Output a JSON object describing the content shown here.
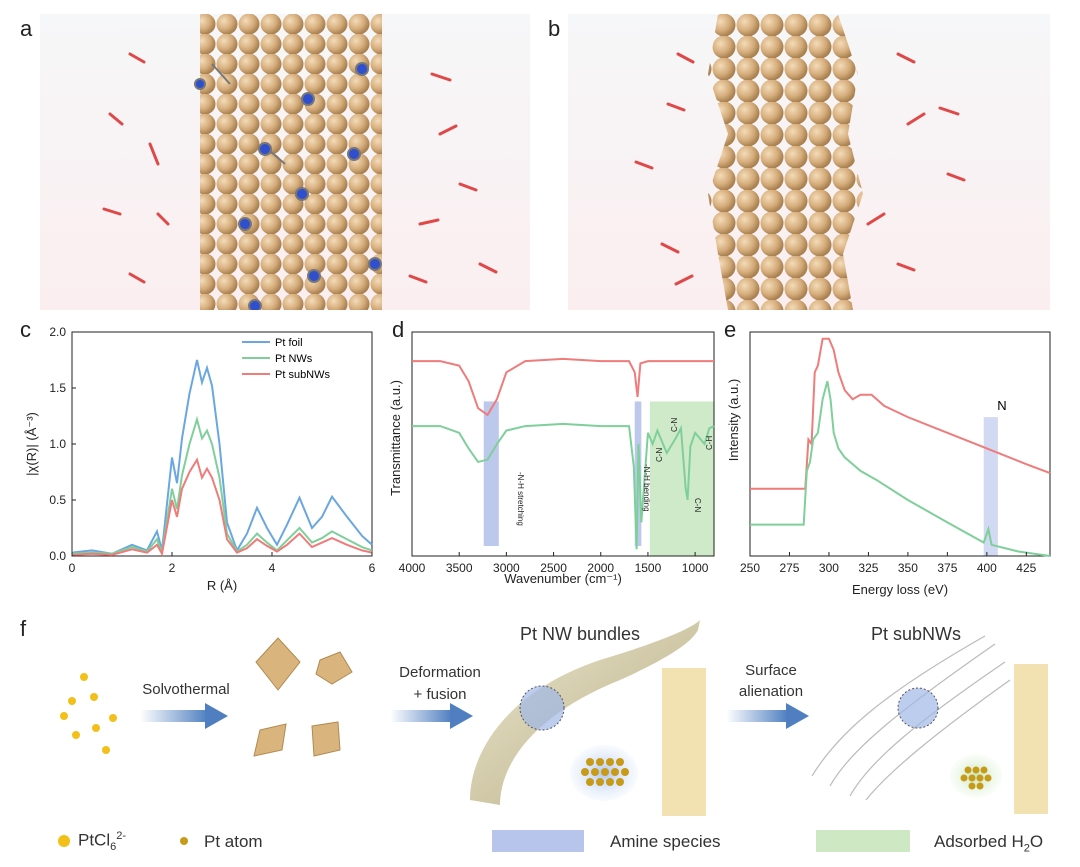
{
  "panels": {
    "a": "a",
    "b": "b",
    "c": "c",
    "d": "d",
    "e": "e",
    "f": "f"
  },
  "colors": {
    "pt_foil": "#6aa7e0",
    "pt_nws": "#7fcf9a",
    "pt_subnws": "#ef7b7b",
    "pt_sphere": "#d9b486",
    "nitrogen": "#2f4fcf",
    "oxygen": "#e04848",
    "amine_band": "#8fa3e0",
    "water_band": "#bfe3b5"
  },
  "chart_data": [
    {
      "id": "c",
      "type": "line",
      "xlabel": "R (Å)",
      "ylabel": "|χ(R)| (Å⁻³)",
      "xlim": [
        0,
        6
      ],
      "ylim": [
        0,
        2.0
      ],
      "xticks": [
        "0",
        "2",
        "4",
        "6"
      ],
      "yticks": [
        "0.0",
        "0.5",
        "1.0",
        "1.5",
        "2.0"
      ],
      "legend": [
        "Pt foil",
        "Pt NWs",
        "Pt subNWs"
      ],
      "series": [
        {
          "name": "Pt foil",
          "x": [
            0,
            0.4,
            0.8,
            1.2,
            1.5,
            1.7,
            1.8,
            2.0,
            2.1,
            2.2,
            2.35,
            2.5,
            2.6,
            2.7,
            2.8,
            2.95,
            3.1,
            3.3,
            3.5,
            3.7,
            3.9,
            4.1,
            4.3,
            4.55,
            4.8,
            5.0,
            5.2,
            5.5,
            5.8,
            6.0
          ],
          "y": [
            0.03,
            0.05,
            0.02,
            0.1,
            0.05,
            0.22,
            0.05,
            0.88,
            0.65,
            1.05,
            1.45,
            1.75,
            1.55,
            1.68,
            1.52,
            1.0,
            0.3,
            0.05,
            0.2,
            0.43,
            0.25,
            0.1,
            0.28,
            0.52,
            0.25,
            0.35,
            0.53,
            0.35,
            0.18,
            0.1
          ]
        },
        {
          "name": "Pt NWs",
          "x": [
            0,
            0.4,
            0.8,
            1.2,
            1.5,
            1.7,
            1.8,
            2.0,
            2.1,
            2.2,
            2.35,
            2.5,
            2.6,
            2.7,
            2.8,
            2.95,
            3.1,
            3.3,
            3.5,
            3.7,
            3.9,
            4.1,
            4.3,
            4.55,
            4.8,
            5.0,
            5.2,
            5.5,
            5.8,
            6.0
          ],
          "y": [
            0.02,
            0.03,
            0.02,
            0.08,
            0.04,
            0.15,
            0.03,
            0.6,
            0.42,
            0.72,
            1.0,
            1.22,
            1.05,
            1.12,
            1.0,
            0.7,
            0.2,
            0.04,
            0.1,
            0.2,
            0.12,
            0.05,
            0.14,
            0.25,
            0.12,
            0.16,
            0.22,
            0.15,
            0.08,
            0.05
          ]
        },
        {
          "name": "Pt subNWs",
          "x": [
            0,
            0.4,
            0.8,
            1.2,
            1.5,
            1.7,
            1.8,
            2.0,
            2.1,
            2.2,
            2.35,
            2.5,
            2.6,
            2.7,
            2.8,
            2.95,
            3.1,
            3.3,
            3.5,
            3.7,
            3.9,
            4.1,
            4.3,
            4.55,
            4.8,
            5.0,
            5.2,
            5.5,
            5.8,
            6.0
          ],
          "y": [
            0.01,
            0.02,
            0.01,
            0.06,
            0.03,
            0.1,
            0.02,
            0.5,
            0.35,
            0.6,
            0.75,
            0.86,
            0.7,
            0.78,
            0.7,
            0.5,
            0.15,
            0.03,
            0.07,
            0.15,
            0.09,
            0.04,
            0.1,
            0.2,
            0.08,
            0.12,
            0.16,
            0.1,
            0.05,
            0.03
          ]
        }
      ]
    },
    {
      "id": "d",
      "type": "line",
      "xlabel": "Wavenumber (cm⁻¹)",
      "ylabel": "Transmittance (a.u.)",
      "xlim": [
        4000,
        800
      ],
      "ylim": [
        0,
        1
      ],
      "xticks": [
        "4000",
        "3500",
        "3000",
        "2500",
        "2000",
        "1500",
        "1000"
      ],
      "bands": [
        {
          "label": "-N-H stretching",
          "from": 3240,
          "to": 3080,
          "kind": "amine"
        },
        {
          "label": "-N-H bending",
          "from": 1640,
          "to": 1570,
          "kind": "amine"
        },
        {
          "label": "",
          "from": 1480,
          "to": 800,
          "kind": "water"
        }
      ],
      "annotations": [
        "C-N",
        "C-N",
        "C-N",
        "C-H"
      ],
      "series": [
        {
          "name": "Pt subNWs",
          "x": [
            4000,
            3700,
            3500,
            3400,
            3300,
            3200,
            3100,
            3000,
            2800,
            2400,
            2000,
            1700,
            1640,
            1610,
            1580,
            1500,
            1200,
            800
          ],
          "y": [
            0.87,
            0.87,
            0.85,
            0.78,
            0.66,
            0.63,
            0.7,
            0.82,
            0.87,
            0.88,
            0.87,
            0.87,
            0.82,
            0.71,
            0.86,
            0.87,
            0.87,
            0.87
          ]
        },
        {
          "name": "Pt NWs",
          "x": [
            4000,
            3700,
            3500,
            3400,
            3300,
            3200,
            3100,
            3000,
            2800,
            2400,
            2000,
            1700,
            1650,
            1620,
            1600,
            1570,
            1500,
            1450,
            1400,
            1300,
            1200,
            1150,
            1100,
            1080,
            1050,
            1000,
            900,
            850,
            800
          ],
          "y": [
            0.58,
            0.58,
            0.55,
            0.48,
            0.42,
            0.43,
            0.5,
            0.56,
            0.58,
            0.59,
            0.58,
            0.58,
            0.4,
            0.03,
            0.5,
            0.15,
            0.55,
            0.5,
            0.56,
            0.46,
            0.53,
            0.57,
            0.3,
            0.25,
            0.49,
            0.55,
            0.5,
            0.57,
            0.58
          ]
        }
      ]
    },
    {
      "id": "e",
      "type": "line",
      "xlabel": "Energy loss (eV)",
      "ylabel": "Intensity (a.u.)",
      "xlim": [
        250,
        440
      ],
      "xticks": [
        "250",
        "275",
        "300",
        "325",
        "350",
        "375",
        "400",
        "425"
      ],
      "bands": [
        {
          "label": "N",
          "from": 398,
          "to": 407
        }
      ],
      "series": [
        {
          "name": "Pt subNWs",
          "x": [
            250,
            283,
            285,
            287,
            289,
            291,
            293,
            296,
            300,
            303,
            306,
            310,
            315,
            320,
            327,
            335,
            350,
            375,
            400,
            425,
            440
          ],
          "y": [
            0.3,
            0.3,
            0.3,
            0.52,
            0.5,
            0.82,
            0.85,
            0.97,
            0.97,
            0.92,
            0.82,
            0.74,
            0.7,
            0.72,
            0.72,
            0.67,
            0.62,
            0.55,
            0.48,
            0.41,
            0.37
          ]
        },
        {
          "name": "Pt NWs",
          "x": [
            250,
            284,
            286,
            288,
            290,
            293,
            296,
            299,
            301,
            303,
            306,
            310,
            315,
            320,
            330,
            350,
            375,
            398,
            401,
            403,
            420,
            440
          ],
          "y": [
            0.14,
            0.14,
            0.38,
            0.42,
            0.52,
            0.55,
            0.7,
            0.78,
            0.7,
            0.55,
            0.48,
            0.44,
            0.41,
            0.38,
            0.34,
            0.25,
            0.15,
            0.06,
            0.12,
            0.05,
            0.02,
            0.0
          ]
        }
      ]
    }
  ],
  "schematic": {
    "step1": "Solvothermal",
    "step2_line1": "Deformation",
    "step2_line2": "+ fusion",
    "bundles_title": "Pt NW bundles",
    "step3_line1": "Surface",
    "step3_line2": "alienation",
    "subnws_title": "Pt subNWs"
  },
  "bottom_legend": {
    "ptcl_label": "PtCl",
    "ptcl_sub": "6",
    "ptcl_sup": "2-",
    "pt_atom_label": "Pt atom",
    "amine_label": "Amine species",
    "water_label": "Adsorbed H",
    "water_sub": "2",
    "water_tail": "O"
  }
}
